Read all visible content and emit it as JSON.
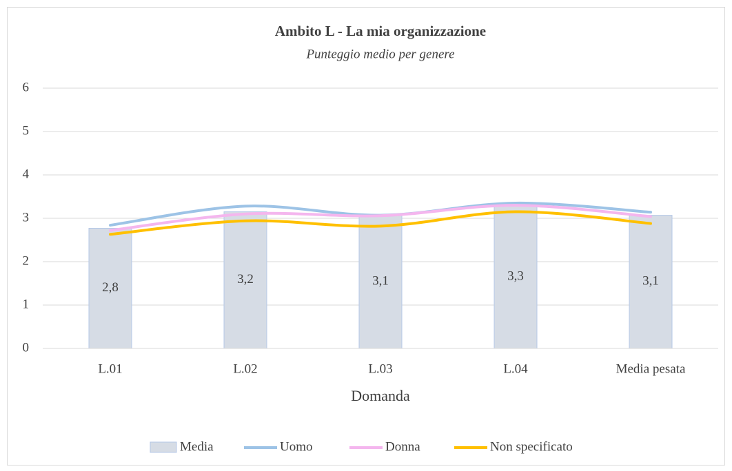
{
  "chart_data": {
    "type": "bar_line",
    "title": "Ambito L - La mia organizzazione",
    "subtitle": "Punteggio medio per genere",
    "x_label": "Domanda",
    "categories": [
      "L.01",
      "L.02",
      "L.03",
      "L.04",
      "Media pesata"
    ],
    "series": [
      {
        "name": "Media",
        "type": "bar",
        "color": "#d6dce5",
        "values": [
          2.77,
          3.15,
          3.08,
          3.3,
          3.07
        ],
        "value_labels": [
          "2,8",
          "3,2",
          "3,1",
          "3,3",
          "3,1"
        ]
      },
      {
        "name": "Uomo",
        "type": "line",
        "color": "#9dc3e6",
        "values": [
          2.84,
          3.28,
          3.07,
          3.35,
          3.14
        ]
      },
      {
        "name": "Donna",
        "type": "line",
        "color": "#f4b6ee",
        "values": [
          2.72,
          3.1,
          3.06,
          3.3,
          3.04
        ]
      },
      {
        "name": "Non specificato",
        "type": "line",
        "color": "#ffc000",
        "values": [
          2.63,
          2.94,
          2.82,
          3.15,
          2.88
        ]
      }
    ],
    "ylim": [
      0,
      6
    ],
    "yticks": [
      0,
      1,
      2,
      3,
      4,
      5,
      6
    ],
    "grid": true,
    "legend": "bottom"
  }
}
